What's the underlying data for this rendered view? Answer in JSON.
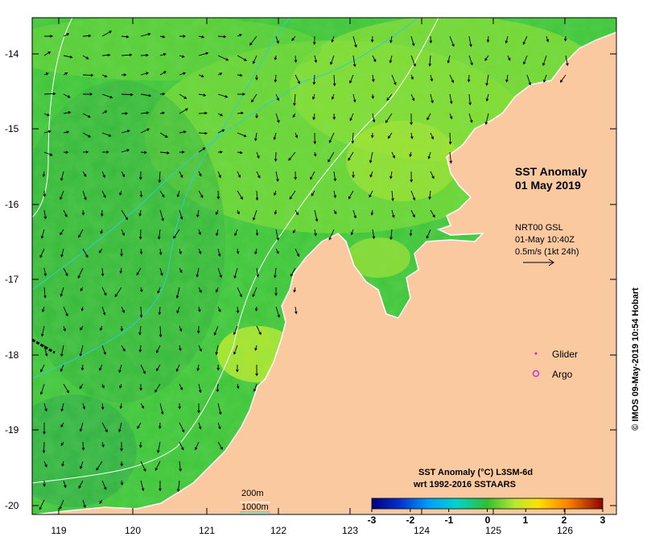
{
  "map": {
    "title_line1": "SST Anomaly",
    "title_line2": "01 May 2019",
    "vector_info": {
      "line1": "NRT00 GSL",
      "line2": "01-May 10:40Z",
      "line3": "0.5m/s (1kt 24h)"
    },
    "legend": {
      "glider": "Glider",
      "argo": "Argo",
      "glider_color": "#cc33cc",
      "argo_color": "#cc33cc"
    },
    "depth_contours": {
      "c200": "200m",
      "c1000": "1000m",
      "c200_color": "#ffffff",
      "c1000_color": "#33cccc"
    },
    "colorbar": {
      "title_line1": "SST Anomaly (°C) L3SM-6d",
      "title_line2": "wrt 1992-2016 SSTAARS",
      "ticks": [
        "-3",
        "-2",
        "-1",
        "0",
        "1",
        "2",
        "3"
      ]
    },
    "credit": "© IMOS 09-May-2019 10:54 Hobart",
    "lat_ticks": [
      "-14",
      "-15",
      "-16",
      "-17",
      "-18",
      "-19",
      "-20"
    ],
    "lon_ticks": [
      "119",
      "120",
      "121",
      "122",
      "123",
      "124",
      "125",
      "126"
    ],
    "colors": {
      "land": "#fbc9a0",
      "sea_base": "#3ec43a",
      "coast": "#ffffff"
    }
  }
}
